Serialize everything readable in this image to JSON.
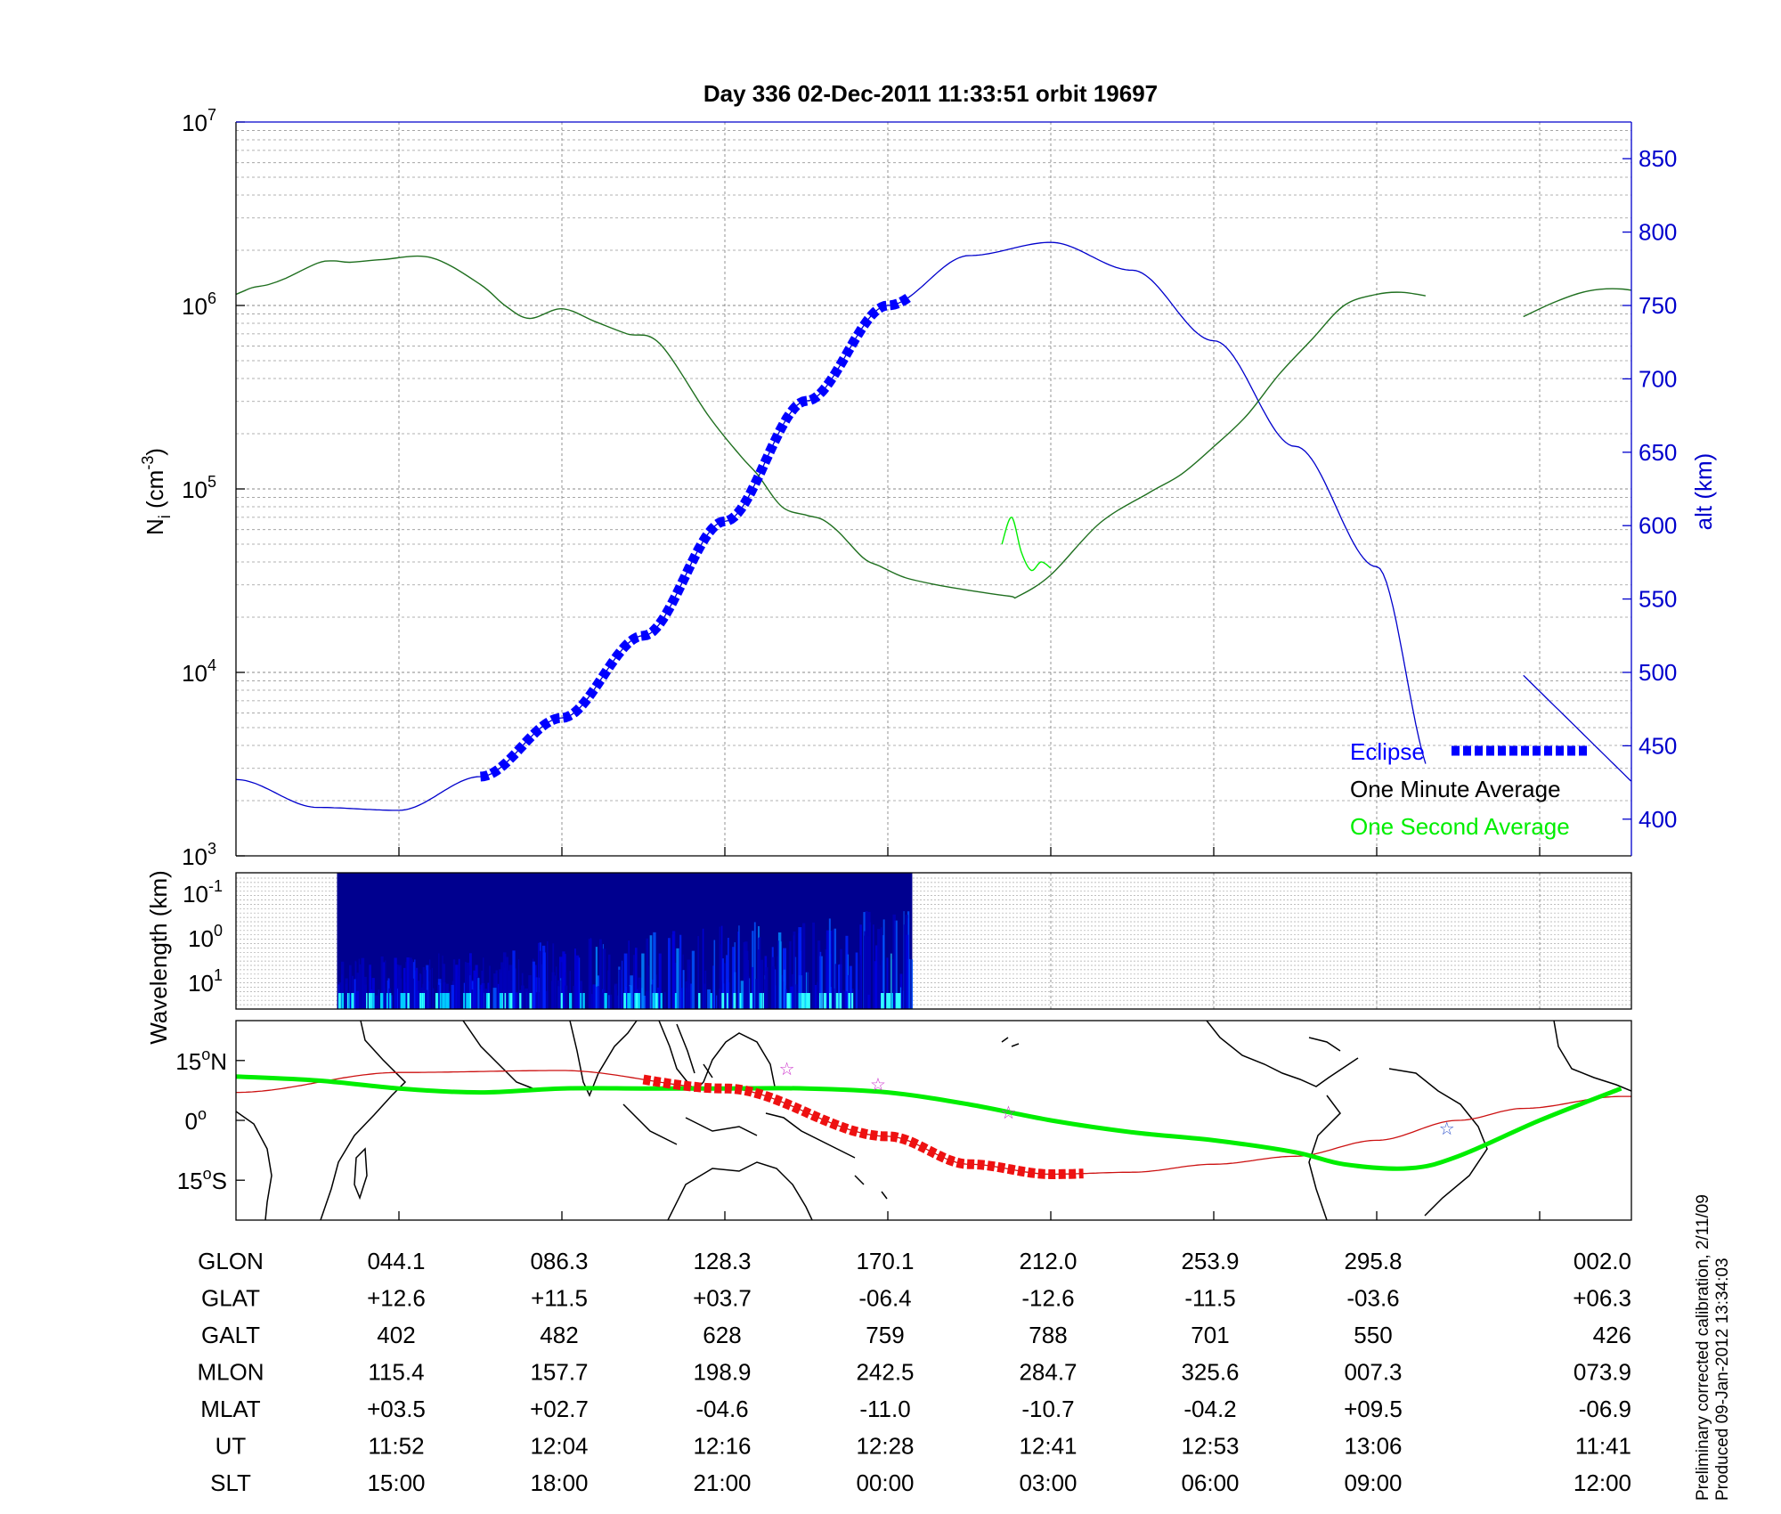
{
  "chart_data": {
    "title": "Day 336  02-Dec-2011 11:33:51   orbit 19697",
    "x_tick_count": 9,
    "density_panel": {
      "type": "line",
      "ylabel_main": "N",
      "ylabel_sub": "i",
      "ylabel_units_pre": "(cm",
      "ylabel_units_exp": "-3",
      "ylabel_units_post": ")",
      "y_scale": "log",
      "ylim": [
        1000,
        10000000
      ],
      "y_ticks": [
        {
          "base": "10",
          "exp": "3",
          "value": 1000
        },
        {
          "base": "10",
          "exp": "4",
          "value": 10000
        },
        {
          "base": "10",
          "exp": "5",
          "value": 100000
        },
        {
          "base": "10",
          "exp": "6",
          "value": 1000000
        },
        {
          "base": "10",
          "exp": "7",
          "value": 10000000
        }
      ],
      "y2label": "alt (km)",
      "y2lim": [
        375,
        875
      ],
      "y2_ticks": [
        400,
        450,
        500,
        550,
        600,
        650,
        700,
        750,
        800,
        850
      ],
      "legend": [
        {
          "label": "Eclipse",
          "color": "#0000ff"
        },
        {
          "label": "One Minute Average",
          "color": "#000000"
        },
        {
          "label": "One Second Average",
          "color": "#00ee00"
        }
      ],
      "density_series": {
        "name": "One Minute Average",
        "color": "#1f6f1f",
        "x": [
          0,
          0.05,
          0.1,
          0.2,
          0.3,
          0.5,
          0.6,
          0.7,
          0.9,
          1.2,
          1.5,
          1.65,
          1.8,
          2.0,
          2.2,
          2.4,
          2.6,
          2.9,
          3.1,
          3.2,
          3.35,
          3.5,
          3.6,
          3.7,
          3.85,
          3.95,
          4.1,
          4.3,
          4.5,
          4.75,
          4.8,
          5.0,
          5.3,
          5.6,
          5.8,
          6.0,
          6.2,
          6.4,
          6.6,
          6.8,
          7.0,
          7.15,
          7.3,
          7.36
        ],
        "values": [
          1150000,
          1200000,
          1250000,
          1300000,
          1400000,
          1700000,
          1750000,
          1720000,
          1780000,
          1820000,
          1300000,
          1000000,
          850000,
          960000,
          820000,
          700000,
          620000,
          250000,
          150000,
          120000,
          80000,
          72000,
          68000,
          58000,
          42000,
          38000,
          33000,
          30000,
          28000,
          26000,
          26000,
          34000,
          65000,
          95000,
          120000,
          170000,
          250000,
          420000,
          650000,
          1000000,
          1150000,
          1180000,
          1130000,
          1100000
        ]
      },
      "one_second_series": {
        "name": "One Second Average",
        "color": "#00ee00",
        "x": [
          4.7,
          4.76,
          4.82,
          4.88,
          4.94,
          5.0
        ],
        "values": [
          50000,
          70000,
          45000,
          36000,
          40000,
          37000
        ]
      },
      "altitude_series": {
        "name": "alt (km)",
        "color": "#0000cc",
        "x": [
          0,
          0.5,
          1.0,
          1.5,
          2.0,
          2.5,
          3.0,
          3.5,
          4.0,
          4.5,
          5.0,
          5.5,
          6.0,
          6.5,
          7.0,
          7.36
        ],
        "values": [
          427,
          408,
          406,
          429,
          469,
          525,
          603,
          685,
          750,
          784,
          793,
          774,
          726,
          654,
          572,
          427
        ]
      },
      "eclipse_x_range": [
        1.5,
        4.15
      ],
      "gap_x_range": [
        7.3,
        7.9
      ]
    },
    "spectrogram_panel": {
      "type": "heatmap",
      "ylabel": "Wavelength (km)",
      "y_ticks": [
        {
          "base": "10",
          "exp": "-1"
        },
        {
          "base": "10",
          "exp": "0"
        },
        {
          "base": "10",
          "exp": "1"
        }
      ],
      "data_x_range": [
        0.62,
        4.15
      ],
      "colormap": "jet"
    },
    "map_panel": {
      "type": "line",
      "y_ticks": [
        {
          "value": "15",
          "deg": "o",
          "hemi": "N",
          "lat": 15
        },
        {
          "value": "0",
          "deg": "o",
          "hemi": "",
          "lat": 0
        },
        {
          "value": "15",
          "deg": "o",
          "hemi": "S",
          "lat": -15
        }
      ],
      "ylim": [
        -25,
        25
      ],
      "magnetic_equator": {
        "color": "#00ee00",
        "x": [
          0,
          0.5,
          1.0,
          1.5,
          2.0,
          2.5,
          3.0,
          3.5,
          4.0,
          4.5,
          5.0,
          5.5,
          6.0,
          6.5,
          6.8,
          7.2,
          7.5,
          8.0,
          8.5
        ],
        "lat": [
          11,
          10,
          8,
          7,
          8,
          8,
          8,
          8,
          7,
          4,
          0,
          -3,
          -5,
          -8,
          -11,
          -12,
          -9,
          0,
          8
        ]
      },
      "ground_track": {
        "color": "#cc1111",
        "x": [
          0,
          1,
          2,
          3,
          4,
          4.5,
          5,
          5.5,
          6,
          6.5,
          7,
          7.5,
          7.9,
          8.5
        ],
        "lat": [
          7,
          12,
          12.5,
          8,
          -4,
          -11,
          -13.5,
          -13,
          -11,
          -9,
          -5,
          0,
          3,
          6
        ]
      },
      "eclipse_x_range": [
        2.5,
        5.2
      ],
      "stars": [
        {
          "x": 3.38,
          "lat": 13,
          "color": "#cc33cc"
        },
        {
          "x": 3.94,
          "lat": 9,
          "color": "#cc33cc"
        },
        {
          "x": 4.74,
          "lat": 2,
          "color": "#cc33cc"
        },
        {
          "x": 7.43,
          "lat": -2,
          "color": "#3355cc"
        }
      ]
    },
    "parameter_table": {
      "row_labels": [
        "GLON",
        "GLAT",
        "GALT",
        "MLON",
        "MLAT",
        "UT",
        "SLT"
      ],
      "columns": [
        [
          "044.1",
          "+12.6",
          "402",
          "115.4",
          "+03.5",
          "11:52",
          "15:00"
        ],
        [
          "086.3",
          "+11.5",
          "482",
          "157.7",
          "+02.7",
          "12:04",
          "18:00"
        ],
        [
          "128.3",
          "+03.7",
          "628",
          "198.9",
          "-04.6",
          "12:16",
          "21:00"
        ],
        [
          "170.1",
          "-06.4",
          "759",
          "242.5",
          "-11.0",
          "12:28",
          "00:00"
        ],
        [
          "212.0",
          "-12.6",
          "788",
          "284.7",
          "-10.7",
          "12:41",
          "03:00"
        ],
        [
          "253.9",
          "-11.5",
          "701",
          "325.6",
          "-04.2",
          "12:53",
          "06:00"
        ],
        [
          "295.8",
          "-03.6",
          "550",
          "007.3",
          "+09.5",
          "13:06",
          "09:00"
        ],
        [
          "002.0",
          "+06.3",
          "426",
          "073.9",
          "-06.9",
          "11:41",
          "12:00"
        ]
      ]
    },
    "footnote_lines": [
      "Preliminary corrected calibration, 2/11/09",
      "Produced 09-Jan-2012 13:34:03"
    ]
  }
}
